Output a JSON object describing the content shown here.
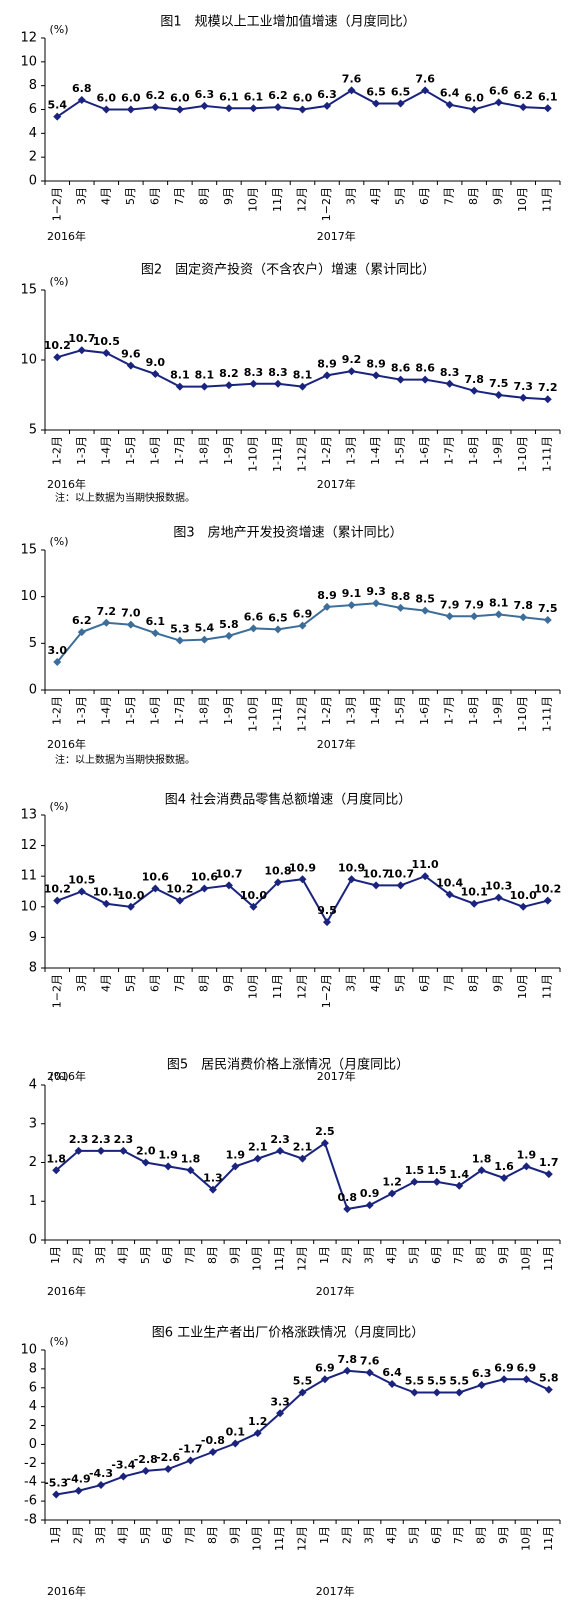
{
  "chart_data": [
    {
      "type": "line",
      "title": "图1　规模以上工业增加值增速（月度同比）",
      "unit": "(%)",
      "color": "#1a237e",
      "categories": [
        "1−2月",
        "3月",
        "4月",
        "5月",
        "6月",
        "7月",
        "8月",
        "9月",
        "10月",
        "11月",
        "12月",
        "1−2月",
        "3月",
        "4月",
        "5月",
        "6月",
        "7月",
        "8月",
        "9月",
        "10月",
        "11月"
      ],
      "values": [
        5.4,
        6.8,
        6.0,
        6.0,
        6.2,
        6.0,
        6.3,
        6.1,
        6.1,
        6.2,
        6.0,
        6.3,
        7.6,
        6.5,
        6.5,
        7.6,
        6.4,
        6.0,
        6.6,
        6.2,
        6.1
      ],
      "value_labels": [
        "5.4",
        "6.8",
        "6.0",
        "6.0",
        "6.2",
        "6.0",
        "6.3",
        "6.1",
        "6.1",
        "6.2",
        "6.0",
        "6.3",
        "7.6",
        "6.5",
        "6.5",
        "7.6",
        "6.4",
        "6.0",
        "6.6",
        "6.2",
        "6.1"
      ],
      "year_labels": [
        "2016年",
        "2017年"
      ],
      "ylim": [
        0,
        12
      ],
      "yticks": [
        0,
        2,
        4,
        6,
        8,
        10,
        12
      ]
    },
    {
      "type": "line",
      "title": "图2　固定资产投资（不含农户）增速（累计同比）",
      "unit": "(%)",
      "color": "#1a237e",
      "categories": [
        "1-2月",
        "1-3月",
        "1-4月",
        "1-5月",
        "1-6月",
        "1-7月",
        "1-8月",
        "1-9月",
        "1-10月",
        "1-11月",
        "1-12月",
        "1-2月",
        "1-3月",
        "1-4月",
        "1-5月",
        "1-6月",
        "1-7月",
        "1-8月",
        "1-9月",
        "1-10月",
        "1-11月"
      ],
      "values": [
        10.2,
        10.7,
        10.5,
        9.6,
        9.0,
        8.1,
        8.1,
        8.2,
        8.3,
        8.3,
        8.1,
        8.9,
        9.2,
        8.9,
        8.6,
        8.6,
        8.3,
        7.8,
        7.5,
        7.3,
        7.2
      ],
      "value_labels": [
        "10.2",
        "10.7",
        "10.5",
        "9.6",
        "9.0",
        "8.1",
        "8.1",
        "8.2",
        "8.3",
        "8.3",
        "8.1",
        "8.9",
        "9.2",
        "8.9",
        "8.6",
        "8.6",
        "8.3",
        "7.8",
        "7.5",
        "7.3",
        "7.2"
      ],
      "year_labels": [
        "2016年",
        "2017年"
      ],
      "note": "注：以上数据为当期快报数据。",
      "ylim": [
        5,
        15
      ],
      "yticks": [
        5,
        10,
        15
      ]
    },
    {
      "type": "line",
      "title": "图3　房地产开发投资增速（累计同比）",
      "unit": "(%)",
      "color": "#3d6e9a",
      "categories": [
        "1-2月",
        "1-3月",
        "1-4月",
        "1-5月",
        "1-6月",
        "1-7月",
        "1-8月",
        "1-9月",
        "1-10月",
        "1-11月",
        "1-12月",
        "1-2月",
        "1-3月",
        "1-4月",
        "1-5月",
        "1-6月",
        "1-7月",
        "1-8月",
        "1-9月",
        "1-10月",
        "1-11月"
      ],
      "values": [
        3.0,
        6.2,
        7.2,
        7.0,
        6.1,
        5.3,
        5.4,
        5.8,
        6.6,
        6.5,
        6.9,
        8.9,
        9.1,
        9.3,
        8.8,
        8.5,
        7.9,
        7.9,
        8.1,
        7.8,
        7.5
      ],
      "value_labels": [
        "3.0",
        "6.2",
        "7.2",
        "7.0",
        "6.1",
        "5.3",
        "5.4",
        "5.8",
        "6.6",
        "6.5",
        "6.9",
        "8.9",
        "9.1",
        "9.3",
        "8.8",
        "8.5",
        "7.9",
        "7.9",
        "8.1",
        "7.8",
        "7.5"
      ],
      "year_labels": [
        "2016年",
        "2017年"
      ],
      "note": "注：以上数据为当期快报数据。",
      "ylim": [
        0,
        15
      ],
      "yticks": [
        0,
        5,
        10,
        15
      ]
    },
    {
      "type": "line",
      "title": "图4 社会消费品零售总额增速（月度同比）",
      "unit": "(%)",
      "color": "#1a237e",
      "categories": [
        "1−2月",
        "3月",
        "4月",
        "5月",
        "6月",
        "7月",
        "8月",
        "9月",
        "10月",
        "11月",
        "12月",
        "1−2月",
        "3月",
        "4月",
        "5月",
        "6月",
        "7月",
        "8月",
        "9月",
        "10月",
        "11月"
      ],
      "values": [
        10.2,
        10.5,
        10.1,
        10.0,
        10.6,
        10.2,
        10.6,
        10.7,
        10.0,
        10.8,
        10.9,
        9.5,
        10.9,
        10.7,
        10.7,
        11.0,
        10.4,
        10.1,
        10.3,
        10.0,
        10.2
      ],
      "value_labels": [
        "10.2",
        "10.5",
        "10.1",
        "10.0",
        "10.6",
        "10.2",
        "10.6",
        "10.7",
        "10.0",
        "10.8",
        "10.9",
        "9.5",
        "10.9",
        "10.7",
        "10.7",
        "11.0",
        "10.4",
        "10.1",
        "10.3",
        "10.0",
        "10.2"
      ],
      "year_labels": [
        "2016年",
        "2017年"
      ],
      "ylim": [
        8,
        13
      ],
      "yticks": [
        8,
        9,
        10,
        11,
        12,
        13
      ]
    },
    {
      "type": "line",
      "title": "图5　居民消费价格上涨情况（月度同比）",
      "unit": "(%)",
      "color": "#1a237e",
      "categories": [
        "1月",
        "2月",
        "3月",
        "4月",
        "5月",
        "6月",
        "7月",
        "8月",
        "9月",
        "10月",
        "11月",
        "12月",
        "1月",
        "2月",
        "3月",
        "4月",
        "5月",
        "6月",
        "7月",
        "8月",
        "9月",
        "10月",
        "11月"
      ],
      "values": [
        1.8,
        2.3,
        2.3,
        2.3,
        2.0,
        1.9,
        1.8,
        1.3,
        1.9,
        2.1,
        2.3,
        2.1,
        2.5,
        0.8,
        0.9,
        1.2,
        1.5,
        1.5,
        1.4,
        1.8,
        1.6,
        1.9,
        1.7
      ],
      "value_labels": [
        "1.8",
        "2.3",
        "2.3",
        "2.3",
        "2.0",
        "1.9",
        "1.8",
        "1.3",
        "1.9",
        "2.1",
        "2.3",
        "2.1",
        "2.5",
        "0.8",
        "0.9",
        "1.2",
        "1.5",
        "1.5",
        "1.4",
        "1.8",
        "1.6",
        "1.9",
        "1.7"
      ],
      "year_labels": [
        "2016年",
        "2017年"
      ],
      "ylim": [
        0,
        4
      ],
      "yticks": [
        0,
        1,
        2,
        3,
        4
      ]
    },
    {
      "type": "line",
      "title": "图6 工业生产者出厂价格涨跌情况（月度同比）",
      "unit": "(%)",
      "color": "#1a237e",
      "categories": [
        "1月",
        "2月",
        "3月",
        "4月",
        "5月",
        "6月",
        "7月",
        "8月",
        "9月",
        "10月",
        "11月",
        "12月",
        "1月",
        "2月",
        "3月",
        "4月",
        "5月",
        "6月",
        "7月",
        "8月",
        "9月",
        "10月",
        "11月"
      ],
      "values": [
        -5.3,
        -4.9,
        -4.3,
        -3.4,
        -2.8,
        -2.6,
        -1.7,
        -0.8,
        0.1,
        1.2,
        3.3,
        5.5,
        6.9,
        7.8,
        7.6,
        6.4,
        5.5,
        5.5,
        5.5,
        6.3,
        6.9,
        6.9,
        5.8
      ],
      "year_labels": [
        "2016年",
        "2017年"
      ],
      "ylim": [
        -8,
        10
      ],
      "yticks": [
        -8,
        -6,
        -4,
        -2,
        0,
        2,
        4,
        6,
        8,
        10
      ]
    }
  ]
}
